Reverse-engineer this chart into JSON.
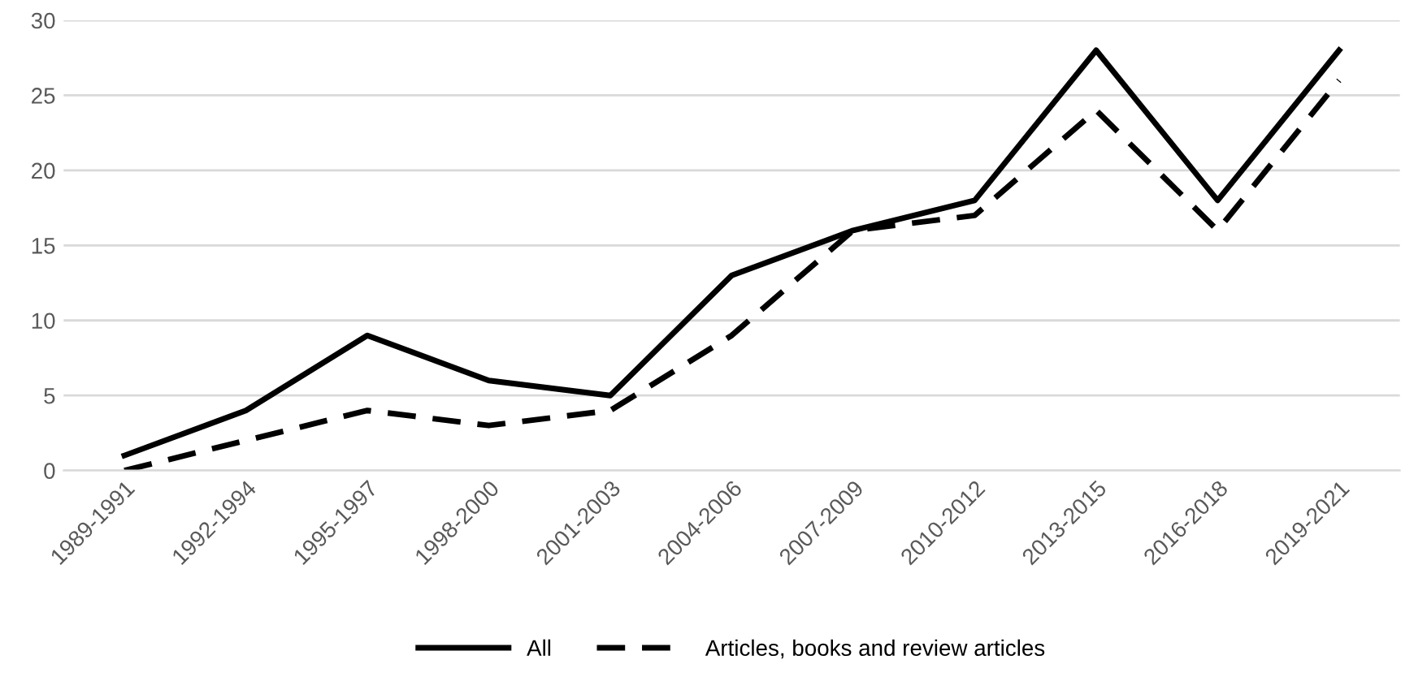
{
  "chart_data": {
    "type": "line",
    "categories": [
      "1989-1991",
      "1992-1994",
      "1995-1997",
      "1998-2000",
      "2001-2003",
      "2004-2006",
      "2007-2009",
      "2010-2012",
      "2013-2015",
      "2016-2018",
      "2019-2021"
    ],
    "series": [
      {
        "name": "All",
        "color": "#000000",
        "line_style": "solid",
        "values": [
          1,
          4,
          9,
          6,
          5,
          13,
          16,
          18,
          28,
          18,
          28
        ]
      },
      {
        "name": "Articles, books and review articles",
        "color": "#000000",
        "line_style": "dashed",
        "values": [
          0,
          2,
          4,
          3,
          4,
          9,
          16,
          17,
          24,
          16,
          26
        ]
      }
    ],
    "ylim": [
      0,
      30
    ],
    "yticks": [
      0,
      5,
      10,
      15,
      20,
      25,
      30
    ],
    "grid": "y",
    "legend": "bottom",
    "marker": "none"
  }
}
